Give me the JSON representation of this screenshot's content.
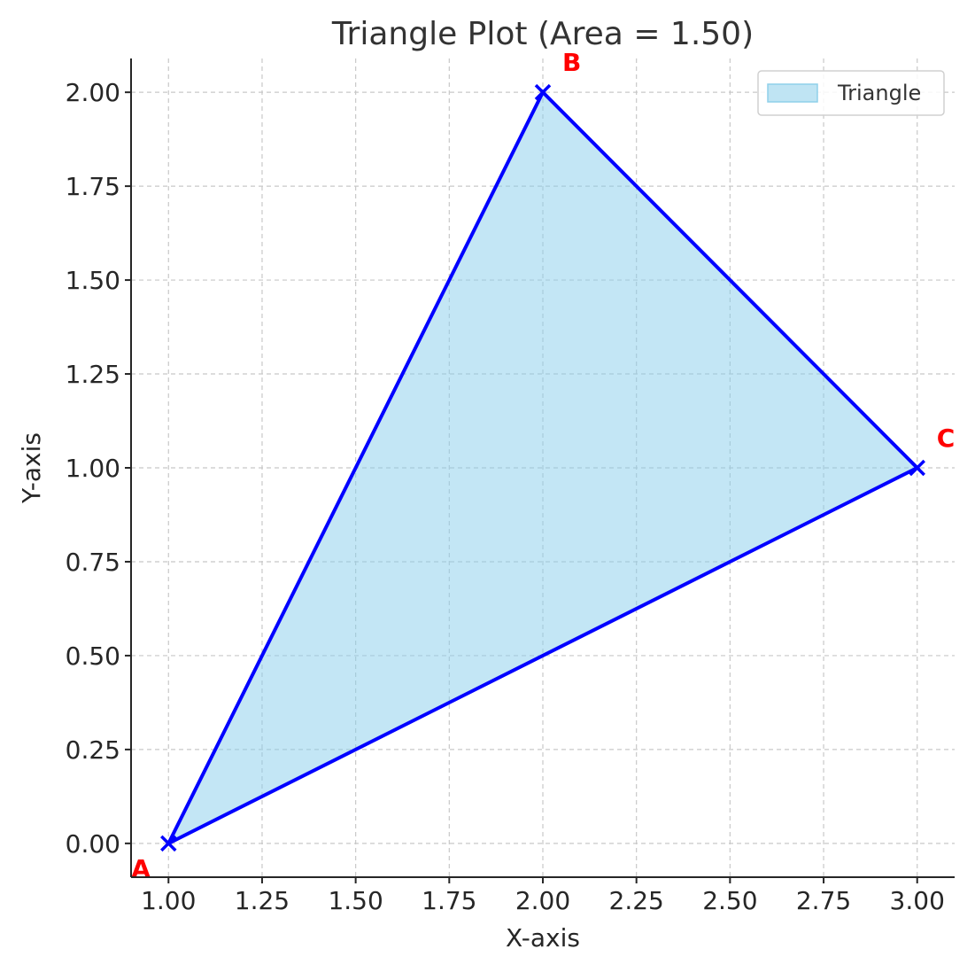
{
  "chart_data": {
    "type": "area",
    "title": "Triangle Plot (Area = 1.50)",
    "xlabel": "X-axis",
    "ylabel": "Y-axis",
    "xlim": [
      0.9,
      3.1
    ],
    "ylim": [
      -0.09,
      2.09
    ],
    "x_ticks": [
      "1.00",
      "1.25",
      "1.50",
      "1.75",
      "2.00",
      "2.25",
      "2.50",
      "2.75",
      "3.00"
    ],
    "y_ticks": [
      "0.00",
      "0.25",
      "0.50",
      "0.75",
      "1.00",
      "1.25",
      "1.50",
      "1.75",
      "2.00"
    ],
    "grid": true,
    "legend": {
      "placement": "top-right",
      "entries": [
        "Triangle"
      ]
    },
    "series": [
      {
        "name": "Triangle",
        "points": [
          {
            "label": "A",
            "x": 1,
            "y": 0
          },
          {
            "label": "B",
            "x": 2,
            "y": 2
          },
          {
            "label": "C",
            "x": 3,
            "y": 1
          }
        ]
      }
    ],
    "colors": {
      "fill": "#87ceeb",
      "edge": "#0000ff",
      "vertex_label": "#ff0000",
      "legend_fill": "#bfe4f3",
      "legend_edge": "#8fd0ea"
    }
  }
}
